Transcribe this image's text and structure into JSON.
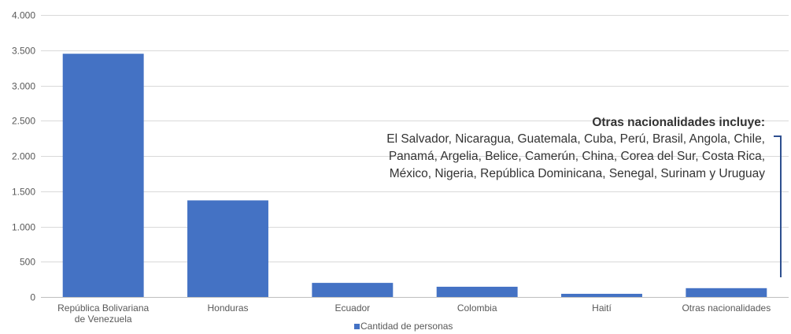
{
  "chart_data": {
    "type": "bar",
    "categories": [
      [
        "República Bolivariana",
        "de Venezuela"
      ],
      [
        "Honduras"
      ],
      [
        "Ecuador"
      ],
      [
        "Colombia"
      ],
      [
        "Haití"
      ],
      [
        "Otras nacionalidades"
      ]
    ],
    "series": [
      {
        "name": "Cantidad de personas",
        "color": "#4472c4",
        "values": [
          3450,
          1370,
          200,
          145,
          45,
          125
        ]
      }
    ],
    "ylim": [
      0,
      4000
    ],
    "yticks": [
      0,
      500,
      1000,
      1500,
      2000,
      2500,
      3000,
      3500,
      4000
    ],
    "ytick_labels": [
      "0",
      "500",
      "1.000",
      "1.500",
      "2.000",
      "2.500",
      "3.000",
      "3.500",
      "4.000"
    ],
    "grid": true,
    "legend": "bottom-center",
    "title": "",
    "xlabel": "",
    "ylabel": ""
  },
  "annotation": {
    "title": "Otras nacionalidades incluye:",
    "lines": [
      "El Salvador, Nicaragua, Guatemala, Cuba, Perú, Brasil, Angola, Chile,",
      "Panamá, Argelia, Belice, Camerún, China, Corea del Sur, Costa Rica,",
      "México, Nigeria, República Dominicana, Senegal, Surinam y Uruguay"
    ]
  }
}
